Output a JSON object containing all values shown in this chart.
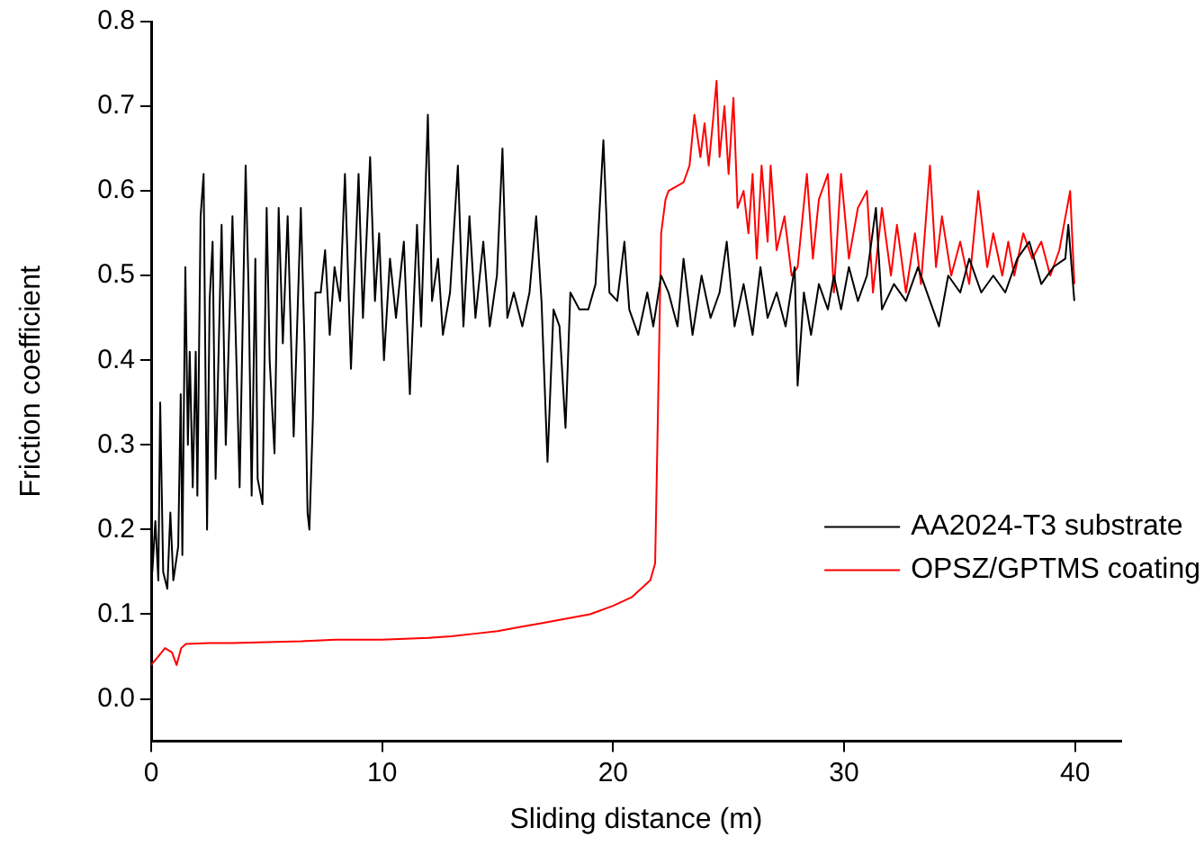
{
  "chart_data": {
    "type": "line",
    "xlabel": "Sliding distance (m)",
    "ylabel": "Friction coefficient",
    "xlim": [
      0,
      42
    ],
    "xticks": [
      0,
      10,
      20,
      30,
      40
    ],
    "ylim": [
      -0.05,
      0.8
    ],
    "yticks": [
      {
        "value": 0,
        "label": "0.0"
      },
      0.1,
      0.2,
      0.3,
      0.4,
      0.5,
      0.6,
      0.7,
      0.8
    ],
    "grid": false,
    "legend": "bottom right",
    "marker": "none",
    "line_style": "solid",
    "series": [
      {
        "name": "AA2024-T3 substrate",
        "color": "#000000",
        "x": [
          0.05,
          0.18,
          0.31,
          0.39,
          0.52,
          0.7,
          0.83,
          0.96,
          1.17,
          1.28,
          1.35,
          1.48,
          1.59,
          1.67,
          1.8,
          1.93,
          2.0,
          2.14,
          2.27,
          2.37,
          2.42,
          2.53,
          2.66,
          2.79,
          3.05,
          3.23,
          3.52,
          3.7,
          3.83,
          4.09,
          4.22,
          4.35,
          4.51,
          4.61,
          4.82,
          5.0,
          5.13,
          5.34,
          5.52,
          5.7,
          5.91,
          6.17,
          6.48,
          6.64,
          6.77,
          6.85,
          7.0,
          7.11,
          7.34,
          7.53,
          7.73,
          7.94,
          8.18,
          8.39,
          8.65,
          8.98,
          9.17,
          9.48,
          9.69,
          9.87,
          10.08,
          10.34,
          10.6,
          10.94,
          11.2,
          11.51,
          11.69,
          11.98,
          12.16,
          12.42,
          12.63,
          12.94,
          13.28,
          13.52,
          13.78,
          14.04,
          14.38,
          14.66,
          14.97,
          15.21,
          15.42,
          15.7,
          16.07,
          16.38,
          16.67,
          16.9,
          17.16,
          17.42,
          17.68,
          17.94,
          18.15,
          18.54,
          18.93,
          19.24,
          19.58,
          19.84,
          20.18,
          20.49,
          20.7,
          21.09,
          21.48,
          21.74,
          22.08,
          22.4,
          22.79,
          23.05,
          23.44,
          23.83,
          24.22,
          24.61,
          24.92,
          25.26,
          25.65,
          26.04,
          26.38,
          26.69,
          27.08,
          27.47,
          27.86,
          27.99,
          28.26,
          28.57,
          28.91,
          29.3,
          29.56,
          29.87,
          30.21,
          30.6,
          30.99,
          31.38,
          31.64,
          32.16,
          32.68,
          33.2,
          33.72,
          34.11,
          34.51,
          35.03,
          35.42,
          35.94,
          36.46,
          36.98,
          37.5,
          38.02,
          38.54,
          39.06,
          39.58,
          39.71,
          39.97
        ],
        "values": [
          0.15,
          0.21,
          0.14,
          0.35,
          0.15,
          0.13,
          0.22,
          0.14,
          0.18,
          0.36,
          0.17,
          0.51,
          0.3,
          0.41,
          0.25,
          0.41,
          0.24,
          0.57,
          0.62,
          0.33,
          0.2,
          0.47,
          0.54,
          0.26,
          0.56,
          0.3,
          0.57,
          0.39,
          0.25,
          0.63,
          0.48,
          0.24,
          0.52,
          0.26,
          0.23,
          0.58,
          0.4,
          0.29,
          0.58,
          0.42,
          0.57,
          0.31,
          0.58,
          0.42,
          0.22,
          0.2,
          0.33,
          0.48,
          0.48,
          0.53,
          0.43,
          0.51,
          0.47,
          0.62,
          0.39,
          0.62,
          0.45,
          0.64,
          0.47,
          0.55,
          0.4,
          0.52,
          0.45,
          0.54,
          0.36,
          0.56,
          0.44,
          0.69,
          0.47,
          0.52,
          0.43,
          0.48,
          0.63,
          0.44,
          0.57,
          0.45,
          0.54,
          0.44,
          0.5,
          0.65,
          0.45,
          0.48,
          0.44,
          0.48,
          0.57,
          0.47,
          0.28,
          0.46,
          0.44,
          0.32,
          0.48,
          0.46,
          0.46,
          0.49,
          0.66,
          0.48,
          0.47,
          0.54,
          0.46,
          0.43,
          0.48,
          0.44,
          0.5,
          0.48,
          0.44,
          0.52,
          0.43,
          0.5,
          0.45,
          0.48,
          0.54,
          0.44,
          0.49,
          0.43,
          0.51,
          0.45,
          0.48,
          0.44,
          0.51,
          0.37,
          0.48,
          0.43,
          0.49,
          0.46,
          0.5,
          0.46,
          0.51,
          0.47,
          0.5,
          0.58,
          0.46,
          0.49,
          0.47,
          0.51,
          0.47,
          0.44,
          0.5,
          0.48,
          0.52,
          0.48,
          0.5,
          0.48,
          0.52,
          0.54,
          0.49,
          0.51,
          0.52,
          0.56,
          0.47
        ]
      },
      {
        "name": "OPSZ/GPTMS coating",
        "color": "#ff0000",
        "x": [
          0,
          0.3,
          0.6,
          0.9,
          1.1,
          1.3,
          1.5,
          2.5,
          3.5,
          5,
          6.5,
          8,
          10,
          12,
          13,
          14,
          15,
          16,
          17,
          18,
          19,
          20,
          20.8,
          21.61,
          21.82,
          21.95,
          22.08,
          22.27,
          22.4,
          23.05,
          23.31,
          23.52,
          23.78,
          23.96,
          24.14,
          24.35,
          24.48,
          24.61,
          24.82,
          25.0,
          25.21,
          25.39,
          25.65,
          25.86,
          26.04,
          26.22,
          26.43,
          26.69,
          26.82,
          27.08,
          27.42,
          27.73,
          27.99,
          28.39,
          28.65,
          28.91,
          29.3,
          29.56,
          29.87,
          30.21,
          30.6,
          30.99,
          31.25,
          31.64,
          32.03,
          32.29,
          32.68,
          33.07,
          33.33,
          33.72,
          33.98,
          34.24,
          34.64,
          35.03,
          35.42,
          35.81,
          36.2,
          36.46,
          36.85,
          37.11,
          37.37,
          37.76,
          38.15,
          38.54,
          38.93,
          39.32,
          39.79,
          39.97
        ],
        "values": [
          0.04,
          0.05,
          0.06,
          0.055,
          0.04,
          0.06,
          0.065,
          0.066,
          0.066,
          0.067,
          0.068,
          0.07,
          0.07,
          0.072,
          0.074,
          0.077,
          0.08,
          0.085,
          0.09,
          0.095,
          0.1,
          0.11,
          0.12,
          0.14,
          0.16,
          0.35,
          0.55,
          0.59,
          0.6,
          0.61,
          0.63,
          0.69,
          0.64,
          0.68,
          0.63,
          0.69,
          0.73,
          0.64,
          0.7,
          0.62,
          0.71,
          0.58,
          0.6,
          0.55,
          0.62,
          0.52,
          0.63,
          0.54,
          0.63,
          0.53,
          0.57,
          0.5,
          0.51,
          0.62,
          0.52,
          0.59,
          0.62,
          0.48,
          0.62,
          0.52,
          0.58,
          0.6,
          0.48,
          0.58,
          0.5,
          0.56,
          0.48,
          0.55,
          0.49,
          0.63,
          0.51,
          0.57,
          0.5,
          0.54,
          0.49,
          0.6,
          0.51,
          0.55,
          0.5,
          0.54,
          0.5,
          0.55,
          0.52,
          0.54,
          0.5,
          0.53,
          0.6,
          0.49
        ]
      }
    ]
  }
}
